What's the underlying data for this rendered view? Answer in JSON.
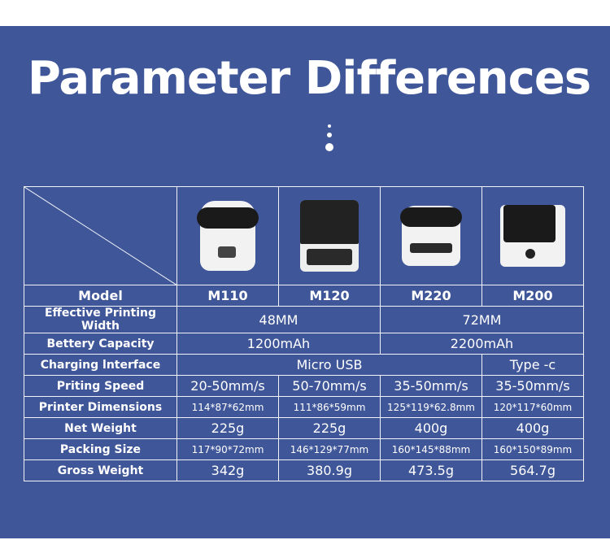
{
  "title": "Parameter Differences",
  "colors": {
    "background": "#3f5699",
    "text": "#ffffff",
    "grid": "#f2f4fa"
  },
  "table": {
    "models": [
      "M110",
      "M120",
      "M220",
      "M200"
    ],
    "rows": [
      {
        "label": "Model"
      },
      {
        "label": "Effective Printing Width",
        "cells": [
          {
            "value": "48MM",
            "span": 2
          },
          {
            "value": "72MM",
            "span": 2
          }
        ]
      },
      {
        "label": "Bettery Capacity",
        "cells": [
          {
            "value": "1200mAh",
            "span": 2
          },
          {
            "value": "2200mAh",
            "span": 2
          }
        ]
      },
      {
        "label": "Charging lnterface",
        "cells": [
          {
            "value": "Micro USB",
            "span": 3
          },
          {
            "value": "Type -c",
            "span": 1
          }
        ]
      },
      {
        "label": "Priting Speed",
        "cells": [
          "20-50mm/s",
          "50-70mm/s",
          "35-50mm/s",
          "35-50mm/s"
        ]
      },
      {
        "label": "Printer Dimensions",
        "cells": [
          "114*87*62mm",
          "111*86*59mm",
          "125*119*62.8mm",
          "120*117*60mm"
        ]
      },
      {
        "label": "Net Weight",
        "cells": [
          "225g",
          "225g",
          "400g",
          "400g"
        ]
      },
      {
        "label": "Packing Size",
        "cells": [
          "117*90*72mm",
          "146*129*77mm",
          "160*145*88mm",
          "160*150*89mm"
        ]
      },
      {
        "label": "Gross Weight",
        "cells": [
          "342g",
          "380.9g",
          "473.5g",
          "564.7g"
        ]
      }
    ]
  }
}
